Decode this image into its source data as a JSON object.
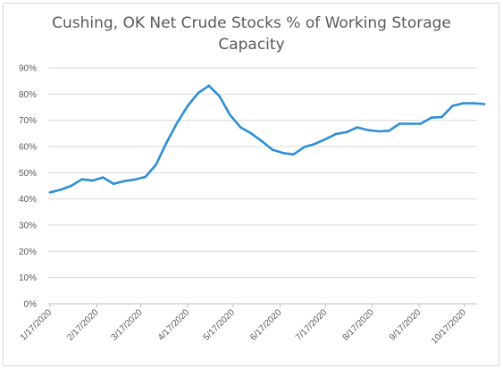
{
  "chart_data": {
    "type": "line",
    "title_lines": [
      "Cushing, OK Net Crude Stocks % of Working Storage",
      "Capacity"
    ],
    "xlabel": "",
    "ylabel": "",
    "x_tick_labels": [
      "1/17/2020",
      "2/17/2020",
      "3/17/2020",
      "4/17/2020",
      "5/17/2020",
      "6/17/2020",
      "7/17/2020",
      "8/17/2020",
      "9/17/2020",
      "10/17/2020"
    ],
    "y_tick_labels": [
      "0%",
      "10%",
      "20%",
      "30%",
      "40%",
      "50%",
      "60%",
      "70%",
      "80%",
      "90%"
    ],
    "ylim": [
      0,
      90
    ],
    "y_unit": "percent",
    "grid": "horizontal",
    "legend": "none",
    "line_color": "#2e8fd4",
    "series": [
      {
        "x": [
          "2020-01-17",
          "2020-01-24",
          "2020-01-31",
          "2020-02-07",
          "2020-02-14",
          "2020-02-21",
          "2020-02-28",
          "2020-03-06",
          "2020-03-13",
          "2020-03-20",
          "2020-03-27",
          "2020-04-03",
          "2020-04-10",
          "2020-04-17",
          "2020-04-24",
          "2020-05-01",
          "2020-05-08",
          "2020-05-15",
          "2020-05-22",
          "2020-05-29",
          "2020-06-05",
          "2020-06-12",
          "2020-06-19",
          "2020-06-26",
          "2020-07-03",
          "2020-07-10",
          "2020-07-17",
          "2020-07-24",
          "2020-07-31",
          "2020-08-07",
          "2020-08-14",
          "2020-08-21",
          "2020-08-28",
          "2020-09-04",
          "2020-09-11",
          "2020-09-18",
          "2020-09-25",
          "2020-10-02",
          "2020-10-09",
          "2020-10-16",
          "2020-10-23",
          "2020-10-30"
        ],
        "values": [
          42.5,
          43.5,
          45.0,
          47.5,
          47.0,
          48.2,
          45.8,
          46.8,
          47.4,
          48.4,
          53.0,
          61.5,
          69.0,
          75.5,
          80.5,
          83.2,
          79.2,
          72.0,
          67.3,
          65.0,
          62.0,
          58.8,
          57.5,
          57.0,
          59.8,
          61.0,
          62.8,
          64.8,
          65.5,
          67.3,
          66.3,
          65.8,
          66.0,
          68.7,
          68.7,
          68.7,
          71.0,
          71.3,
          75.5,
          76.5,
          76.5,
          76.2
        ]
      }
    ]
  }
}
